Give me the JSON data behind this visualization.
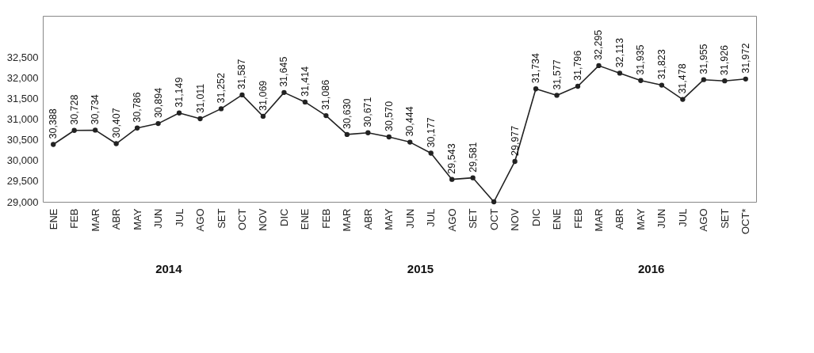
{
  "chart_data": {
    "type": "line",
    "categories": [
      "ENE",
      "FEB",
      "MAR",
      "ABR",
      "MAY",
      "JUN",
      "JUL",
      "AGO",
      "SET",
      "OCT",
      "NOV",
      "DIC",
      "ENE",
      "FEB",
      "MAR",
      "ABR",
      "MAY",
      "JUN",
      "JUL",
      "AGO",
      "SET",
      "OCT",
      "NOV",
      "DIC",
      "ENE",
      "FEB",
      "MAR",
      "ABR",
      "MAY",
      "JUN",
      "JUL",
      "AGO",
      "SET",
      "OCT*"
    ],
    "series": [
      {
        "color": "#222222",
        "values": [
          30388,
          30728,
          30734,
          30407,
          30786,
          30894,
          31149,
          31011,
          31252,
          31587,
          31069,
          31645,
          31414,
          31086,
          30630,
          30671,
          30570,
          30444,
          30177,
          29543,
          29581,
          29000,
          29977,
          31734,
          31577,
          31796,
          32295,
          32113,
          31935,
          31823,
          31478,
          31955,
          31926,
          31972
        ],
        "value_labels": [
          "30,388",
          "30,728",
          "30,734",
          "30,407",
          "30,786",
          "30,894",
          "31,149",
          "31,011",
          "31,252",
          "31,587",
          "31,069",
          "31,645",
          "31,414",
          "31,086",
          "30,630",
          "30,671",
          "30,570",
          "30,444",
          "30,177",
          "29,543",
          "29,581",
          null,
          "29,977",
          "31,734",
          "31,577",
          "31,796",
          "32,295",
          "32,113",
          "31,935",
          "31,823",
          "31,478",
          "31,955",
          "31,926",
          "31,972"
        ]
      }
    ],
    "annotations": [
      "2014",
      "2015",
      "2016"
    ],
    "ylim": [
      29000,
      33500
    ],
    "yticks": [
      {
        "value": 29000,
        "label": "29,000"
      },
      {
        "value": 29500,
        "label": "29,500"
      },
      {
        "value": 30000,
        "label": "30,000"
      },
      {
        "value": 30500,
        "label": "30,500"
      },
      {
        "value": 31000,
        "label": "31,000"
      },
      {
        "value": 31500,
        "label": "31,500"
      },
      {
        "value": 32000,
        "label": "32,000"
      },
      {
        "value": 32500,
        "label": "32,500"
      }
    ],
    "marker": "circle",
    "grid": false,
    "legend": false
  }
}
